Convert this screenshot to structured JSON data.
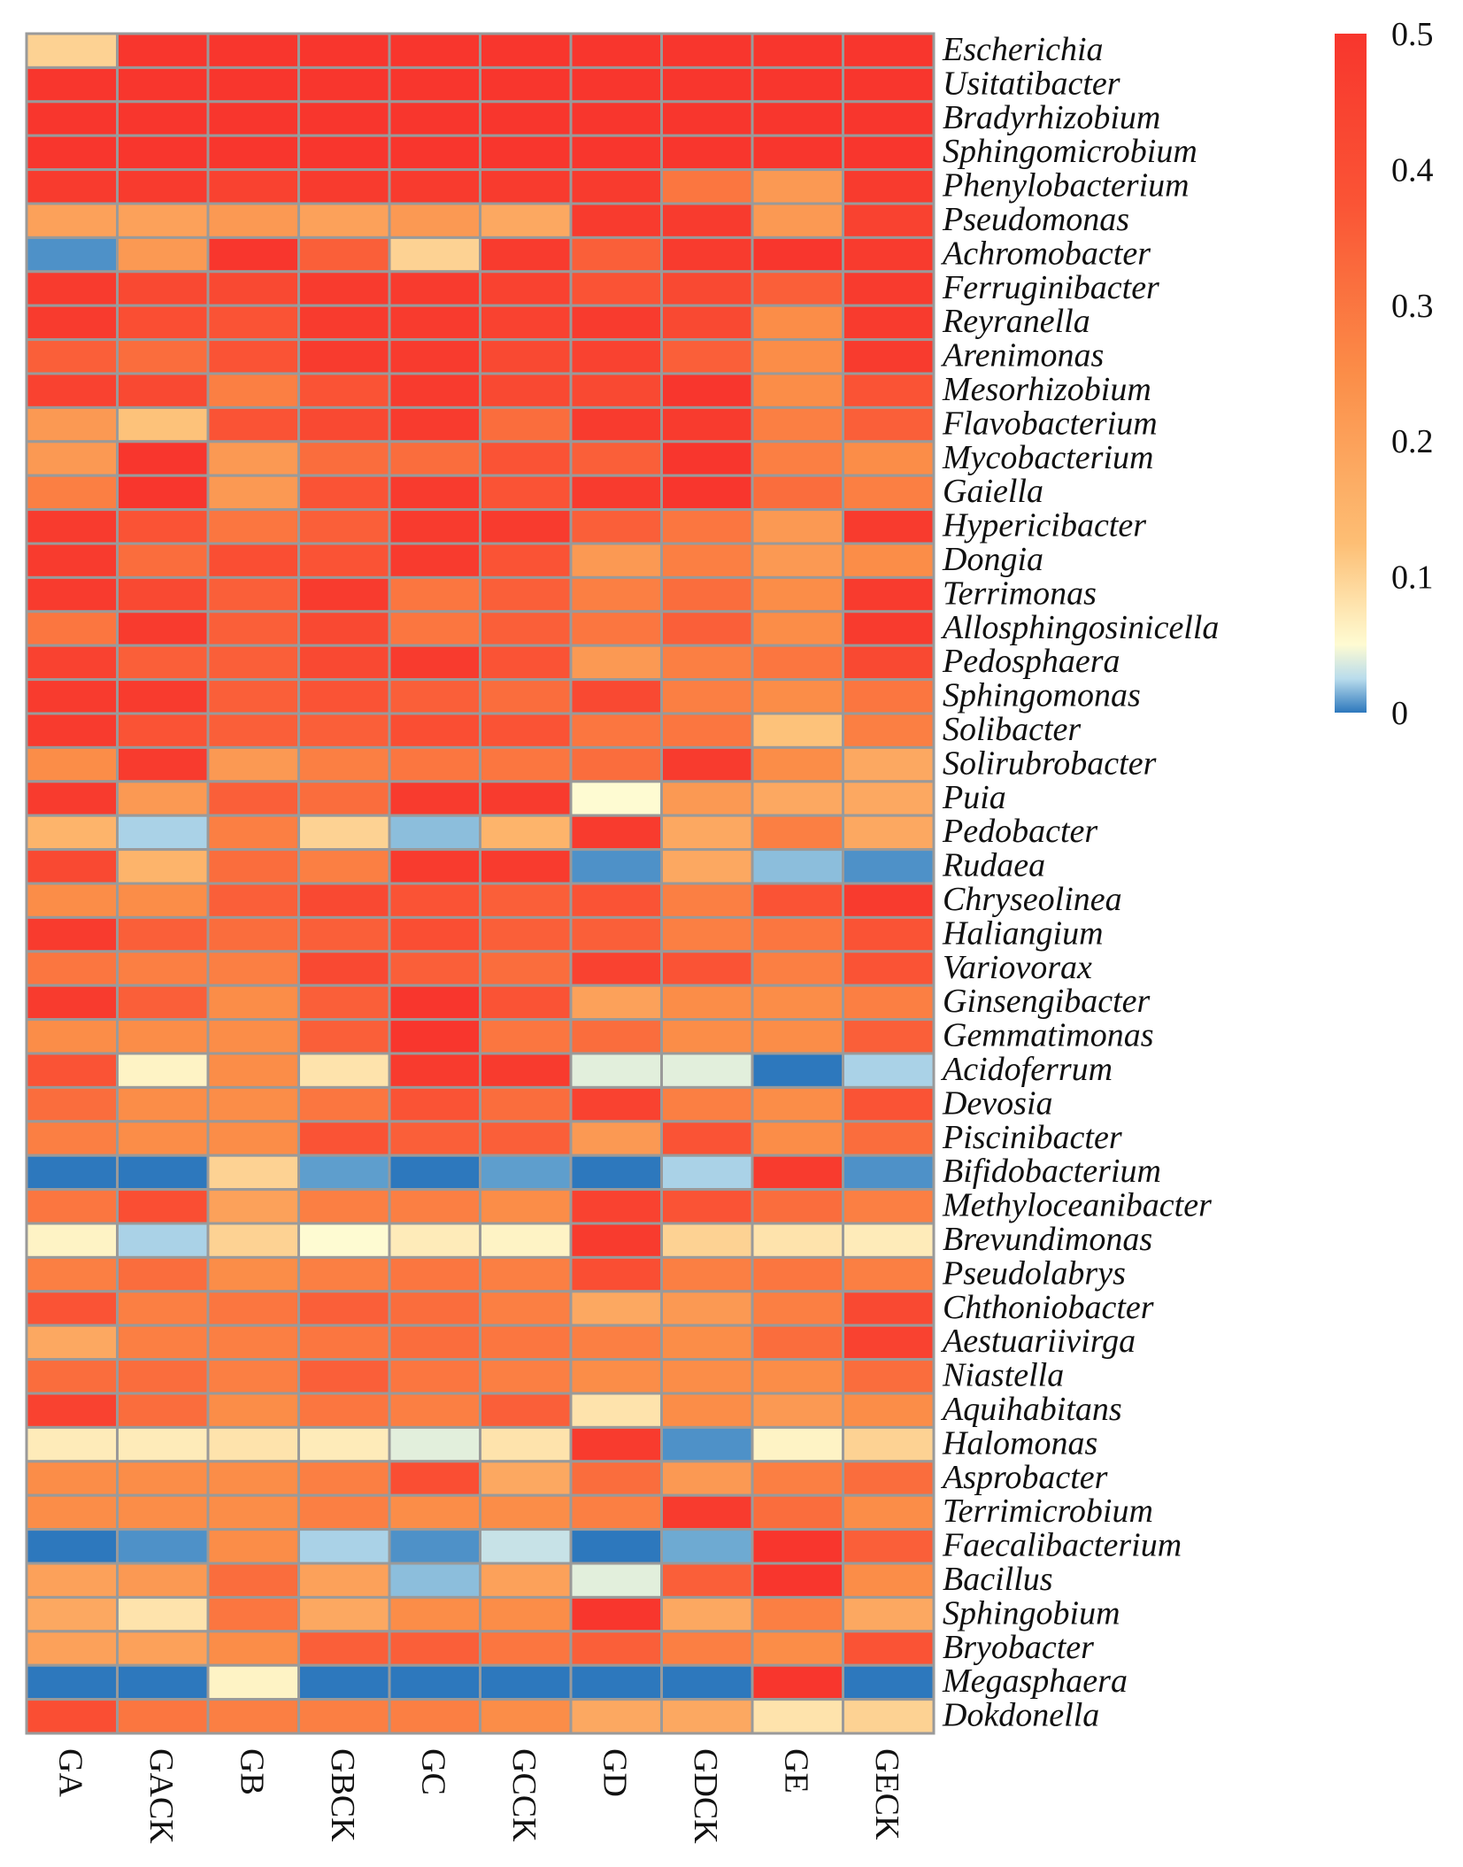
{
  "chart_data": {
    "type": "heatmap",
    "title": "",
    "columns": [
      "GA",
      "GACK",
      "GB",
      "GBCK",
      "GC",
      "GCCK",
      "GD",
      "GDCK",
      "GE",
      "GECK"
    ],
    "rows": [
      "Escherichia",
      "Usitatibacter",
      "Bradyrhizobium",
      "Sphingomicrobium",
      "Phenylobacterium",
      "Pseudomonas",
      "Achromobacter",
      "Ferruginibacter",
      "Reyranella",
      "Arenimonas",
      "Mesorhizobium",
      "Flavobacterium",
      "Mycobacterium",
      "Gaiella",
      "Hypericibacter",
      "Dongia",
      "Terrimonas",
      "Allosphingosinicella",
      "Pedosphaera",
      "Sphingomonas",
      "Solibacter",
      "Solirubrobacter",
      "Puia",
      "Pedobacter",
      "Rudaea",
      "Chryseolinea",
      "Haliangium",
      "Variovorax",
      "Ginsengibacter",
      "Gemmatimonas",
      "Acidoferrum",
      "Devosia",
      "Piscinibacter",
      "Bifidobacterium",
      "Methyloceanibacter",
      "Brevundimonas",
      "Pseudolabrys",
      "Chthoniobacter",
      "Aestuariivirga",
      "Niastella",
      "Aquihabitans",
      "Halomonas",
      "Asprobacter",
      "Terrimicrobium",
      "Faecalibacterium",
      "Bacillus",
      "Sphingobium",
      "Bryobacter",
      "Megasphaera",
      "Dokdonella"
    ],
    "values": [
      [
        0.1,
        0.5,
        0.5,
        0.5,
        0.5,
        0.5,
        0.5,
        0.5,
        0.5,
        0.5
      ],
      [
        0.5,
        0.5,
        0.5,
        0.5,
        0.5,
        0.5,
        0.5,
        0.5,
        0.5,
        0.5
      ],
      [
        0.5,
        0.5,
        0.5,
        0.5,
        0.5,
        0.5,
        0.5,
        0.5,
        0.5,
        0.5
      ],
      [
        0.5,
        0.5,
        0.5,
        0.5,
        0.5,
        0.5,
        0.5,
        0.5,
        0.5,
        0.5
      ],
      [
        0.48,
        0.48,
        0.45,
        0.48,
        0.48,
        0.48,
        0.48,
        0.3,
        0.22,
        0.48
      ],
      [
        0.2,
        0.2,
        0.22,
        0.2,
        0.22,
        0.18,
        0.48,
        0.48,
        0.22,
        0.45
      ],
      [
        -0.02,
        0.22,
        0.5,
        0.35,
        0.1,
        0.48,
        0.35,
        0.48,
        0.5,
        0.48
      ],
      [
        0.48,
        0.42,
        0.42,
        0.48,
        0.48,
        0.45,
        0.38,
        0.42,
        0.35,
        0.48
      ],
      [
        0.48,
        0.4,
        0.38,
        0.48,
        0.48,
        0.45,
        0.48,
        0.42,
        0.25,
        0.48
      ],
      [
        0.35,
        0.32,
        0.38,
        0.48,
        0.48,
        0.42,
        0.45,
        0.35,
        0.25,
        0.48
      ],
      [
        0.45,
        0.42,
        0.28,
        0.38,
        0.48,
        0.42,
        0.42,
        0.5,
        0.25,
        0.38
      ],
      [
        0.22,
        0.12,
        0.38,
        0.42,
        0.48,
        0.32,
        0.48,
        0.48,
        0.28,
        0.35
      ],
      [
        0.22,
        0.5,
        0.22,
        0.32,
        0.32,
        0.38,
        0.35,
        0.5,
        0.28,
        0.25
      ],
      [
        0.28,
        0.5,
        0.22,
        0.38,
        0.48,
        0.38,
        0.48,
        0.5,
        0.32,
        0.28
      ],
      [
        0.48,
        0.38,
        0.3,
        0.35,
        0.48,
        0.48,
        0.35,
        0.3,
        0.22,
        0.48
      ],
      [
        0.48,
        0.32,
        0.4,
        0.38,
        0.48,
        0.38,
        0.22,
        0.28,
        0.22,
        0.25
      ],
      [
        0.48,
        0.42,
        0.35,
        0.48,
        0.3,
        0.35,
        0.28,
        0.32,
        0.25,
        0.48
      ],
      [
        0.3,
        0.48,
        0.35,
        0.42,
        0.3,
        0.35,
        0.3,
        0.35,
        0.25,
        0.48
      ],
      [
        0.45,
        0.35,
        0.35,
        0.42,
        0.48,
        0.38,
        0.22,
        0.28,
        0.3,
        0.42
      ],
      [
        0.48,
        0.48,
        0.35,
        0.38,
        0.35,
        0.32,
        0.42,
        0.28,
        0.25,
        0.3
      ],
      [
        0.48,
        0.38,
        0.35,
        0.35,
        0.4,
        0.38,
        0.3,
        0.3,
        0.12,
        0.28
      ],
      [
        0.25,
        0.48,
        0.22,
        0.28,
        0.3,
        0.3,
        0.32,
        0.48,
        0.25,
        0.18
      ],
      [
        0.48,
        0.22,
        0.35,
        0.32,
        0.48,
        0.48,
        0.05,
        0.22,
        0.18,
        0.18
      ],
      [
        0.15,
        0.02,
        0.28,
        0.1,
        0.01,
        0.15,
        0.48,
        0.18,
        0.28,
        0.18
      ],
      [
        0.42,
        0.15,
        0.32,
        0.28,
        0.48,
        0.48,
        -0.02,
        0.18,
        0.01,
        -0.02
      ],
      [
        0.25,
        0.25,
        0.35,
        0.42,
        0.38,
        0.35,
        0.38,
        0.28,
        0.38,
        0.48
      ],
      [
        0.48,
        0.35,
        0.32,
        0.35,
        0.4,
        0.35,
        0.35,
        0.28,
        0.3,
        0.38
      ],
      [
        0.3,
        0.28,
        0.28,
        0.42,
        0.35,
        0.32,
        0.45,
        0.38,
        0.28,
        0.38
      ],
      [
        0.48,
        0.35,
        0.25,
        0.35,
        0.5,
        0.38,
        0.2,
        0.25,
        0.25,
        0.28
      ],
      [
        0.25,
        0.25,
        0.25,
        0.35,
        0.5,
        0.3,
        0.32,
        0.25,
        0.25,
        0.35
      ],
      [
        0.38,
        0.06,
        0.25,
        0.08,
        0.48,
        0.48,
        0.04,
        0.04,
        -0.04,
        0.02
      ],
      [
        0.32,
        0.25,
        0.25,
        0.3,
        0.38,
        0.32,
        0.45,
        0.28,
        0.25,
        0.38
      ],
      [
        0.28,
        0.25,
        0.25,
        0.38,
        0.35,
        0.35,
        0.22,
        0.38,
        0.25,
        0.32
      ],
      [
        -0.04,
        -0.04,
        0.1,
        -0.01,
        -0.04,
        -0.01,
        -0.04,
        0.02,
        0.48,
        -0.02
      ],
      [
        0.3,
        0.4,
        0.2,
        0.28,
        0.28,
        0.25,
        0.45,
        0.38,
        0.32,
        0.28
      ],
      [
        0.06,
        0.02,
        0.1,
        0.05,
        0.07,
        0.06,
        0.48,
        0.1,
        0.08,
        0.07
      ],
      [
        0.28,
        0.32,
        0.25,
        0.28,
        0.3,
        0.28,
        0.4,
        0.28,
        0.3,
        0.28
      ],
      [
        0.38,
        0.28,
        0.3,
        0.35,
        0.32,
        0.28,
        0.18,
        0.22,
        0.28,
        0.42
      ],
      [
        0.18,
        0.28,
        0.28,
        0.3,
        0.32,
        0.3,
        0.28,
        0.25,
        0.32,
        0.45
      ],
      [
        0.32,
        0.32,
        0.28,
        0.35,
        0.3,
        0.28,
        0.25,
        0.25,
        0.25,
        0.32
      ],
      [
        0.45,
        0.32,
        0.25,
        0.3,
        0.28,
        0.35,
        0.08,
        0.25,
        0.22,
        0.25
      ],
      [
        0.07,
        0.07,
        0.08,
        0.07,
        0.04,
        0.08,
        0.48,
        -0.02,
        0.06,
        0.1
      ],
      [
        0.25,
        0.25,
        0.25,
        0.28,
        0.4,
        0.18,
        0.32,
        0.22,
        0.28,
        0.32
      ],
      [
        0.25,
        0.25,
        0.25,
        0.28,
        0.25,
        0.25,
        0.28,
        0.48,
        0.32,
        0.25
      ],
      [
        -0.04,
        -0.02,
        0.25,
        0.02,
        -0.02,
        0.03,
        -0.04,
        0.0,
        0.5,
        0.35
      ],
      [
        0.2,
        0.22,
        0.32,
        0.2,
        0.01,
        0.2,
        0.04,
        0.35,
        0.5,
        0.25
      ],
      [
        0.18,
        0.08,
        0.3,
        0.18,
        0.25,
        0.25,
        0.5,
        0.18,
        0.28,
        0.18
      ],
      [
        0.2,
        0.2,
        0.25,
        0.35,
        0.35,
        0.3,
        0.35,
        0.28,
        0.25,
        0.38
      ],
      [
        -0.04,
        -0.04,
        0.06,
        -0.04,
        -0.04,
        -0.04,
        -0.04,
        -0.04,
        0.5,
        -0.04
      ],
      [
        0.4,
        0.3,
        0.28,
        0.28,
        0.28,
        0.25,
        0.18,
        0.18,
        0.08,
        0.1
      ]
    ],
    "colorbar": {
      "min": 0,
      "max": 0.5,
      "ticks": [
        "0.5",
        "0.4",
        "0.3",
        "0.2",
        "0.1",
        "0"
      ]
    },
    "xlabel": "",
    "ylabel": ""
  }
}
